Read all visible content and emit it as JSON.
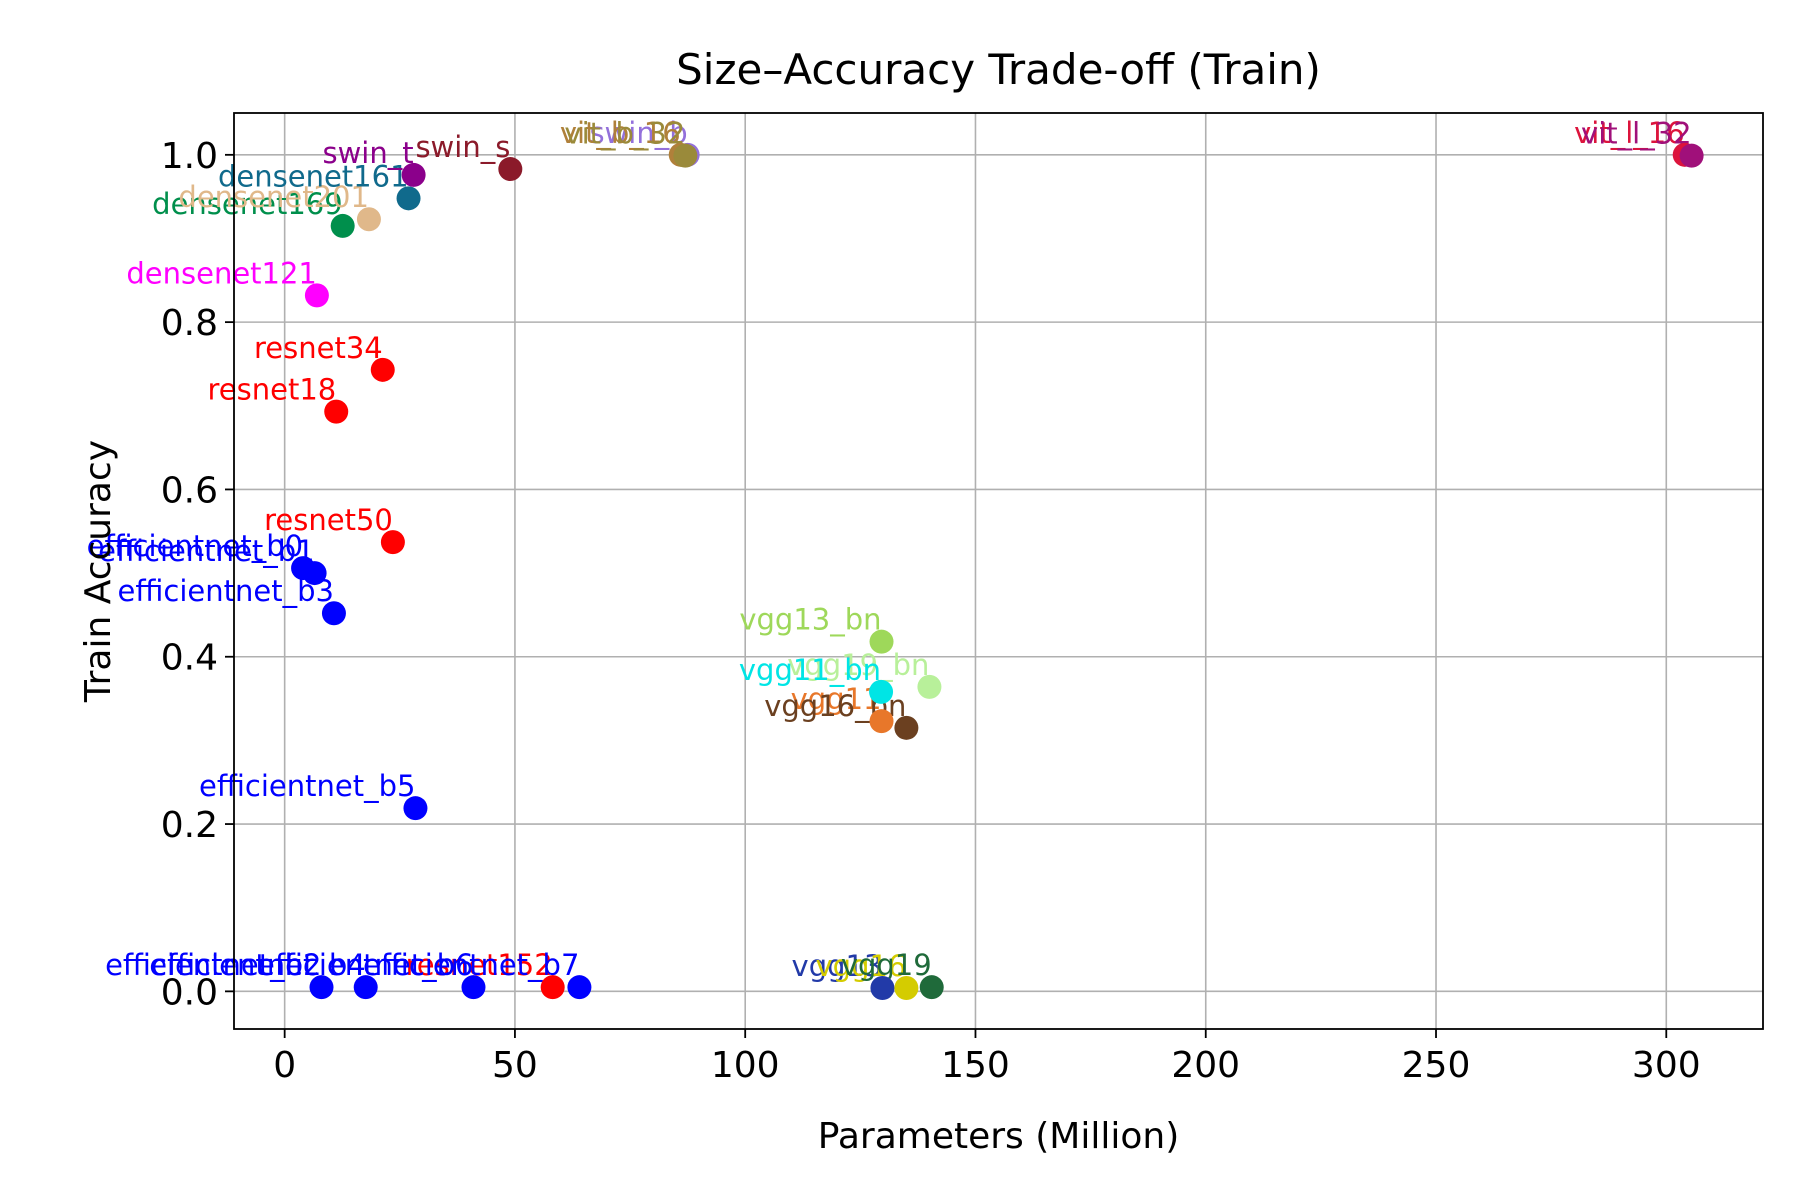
{
  "chart_data": {
    "type": "scatter",
    "title": "Size–Accuracy Trade-off (Train)",
    "xlabel": "Parameters (Million)",
    "ylabel": "Train Accuracy",
    "xlim": [
      -11,
      321
    ],
    "ylim": [
      -0.045,
      1.05
    ],
    "xticks": [
      0,
      50,
      100,
      150,
      200,
      250,
      300
    ],
    "xtick_labels": [
      "0",
      "50",
      "100",
      "150",
      "200",
      "250",
      "300"
    ],
    "yticks": [
      0.0,
      0.2,
      0.4,
      0.6,
      0.8,
      1.0
    ],
    "ytick_labels": [
      "0.0",
      "0.2",
      "0.4",
      "0.6",
      "0.8",
      "1.0"
    ],
    "grid": true,
    "points": [
      {
        "label": "densenet121",
        "x": 7.0,
        "y": 0.832,
        "color": "#ff00ff"
      },
      {
        "label": "densenet169",
        "x": 12.6,
        "y": 0.915,
        "color": "#008f4c"
      },
      {
        "label": "densenet201",
        "x": 18.3,
        "y": 0.923,
        "color": "#e0b88a"
      },
      {
        "label": "densenet161",
        "x": 26.9,
        "y": 0.948,
        "color": "#106a8c"
      },
      {
        "label": "swin_t",
        "x": 28.0,
        "y": 0.976,
        "color": "#8b008b"
      },
      {
        "label": "swin_s",
        "x": 49.0,
        "y": 0.983,
        "color": "#8b1a2a"
      },
      {
        "label": "swin_b",
        "x": 87.5,
        "y": 1.0,
        "color": "#9370db"
      },
      {
        "label": "vit_b_16",
        "x": 86.0,
        "y": 1.0,
        "color": "#b0803a"
      },
      {
        "label": "vit_b_32",
        "x": 87.0,
        "y": 0.999,
        "color": "#9a8a3a"
      },
      {
        "label": "vit_l_16",
        "x": 304.0,
        "y": 1.0,
        "color": "#dc143c"
      },
      {
        "label": "vit_l_32",
        "x": 305.5,
        "y": 0.999,
        "color": "#a0107a"
      },
      {
        "label": "resnet18",
        "x": 11.2,
        "y": 0.693,
        "color": "#ff0000"
      },
      {
        "label": "resnet34",
        "x": 21.3,
        "y": 0.743,
        "color": "#ff0000"
      },
      {
        "label": "resnet50",
        "x": 23.5,
        "y": 0.537,
        "color": "#ff0000"
      },
      {
        "label": "resnet152",
        "x": 58.2,
        "y": 0.005,
        "color": "#ff0000"
      },
      {
        "label": "efficientnet_b0",
        "x": 4.0,
        "y": 0.506,
        "color": "#0000ff"
      },
      {
        "label": "efficientnet_b1",
        "x": 6.5,
        "y": 0.5,
        "color": "#0000ff"
      },
      {
        "label": "efficientnet_b3",
        "x": 10.7,
        "y": 0.452,
        "color": "#0000ff"
      },
      {
        "label": "efficientnet_b5",
        "x": 28.4,
        "y": 0.219,
        "color": "#0000ff"
      },
      {
        "label": "efficientnet_b2",
        "x": 8.0,
        "y": 0.005,
        "color": "#0000ff"
      },
      {
        "label": "efficientnet_b4",
        "x": 17.6,
        "y": 0.005,
        "color": "#0000ff"
      },
      {
        "label": "efficientnet_b6",
        "x": 41.0,
        "y": 0.005,
        "color": "#0000ff"
      },
      {
        "label": "efficientnet_b7",
        "x": 64.0,
        "y": 0.005,
        "color": "#0000ff"
      },
      {
        "label": "vgg13_bn",
        "x": 129.6,
        "y": 0.418,
        "color": "#9ed85a"
      },
      {
        "label": "vgg19_bn",
        "x": 140.0,
        "y": 0.364,
        "color": "#b8f09a"
      },
      {
        "label": "vgg11_bn",
        "x": 129.5,
        "y": 0.358,
        "color": "#00e5e5"
      },
      {
        "label": "vgg11",
        "x": 129.6,
        "y": 0.323,
        "color": "#e8772a"
      },
      {
        "label": "vgg16_bn",
        "x": 135.0,
        "y": 0.315,
        "color": "#6b4020"
      },
      {
        "label": "vgg13",
        "x": 129.8,
        "y": 0.004,
        "color": "#223aa8"
      },
      {
        "label": "vgg16",
        "x": 135.0,
        "y": 0.004,
        "color": "#d4cc00"
      },
      {
        "label": "vgg19",
        "x": 140.5,
        "y": 0.005,
        "color": "#1f6a3a"
      }
    ]
  }
}
